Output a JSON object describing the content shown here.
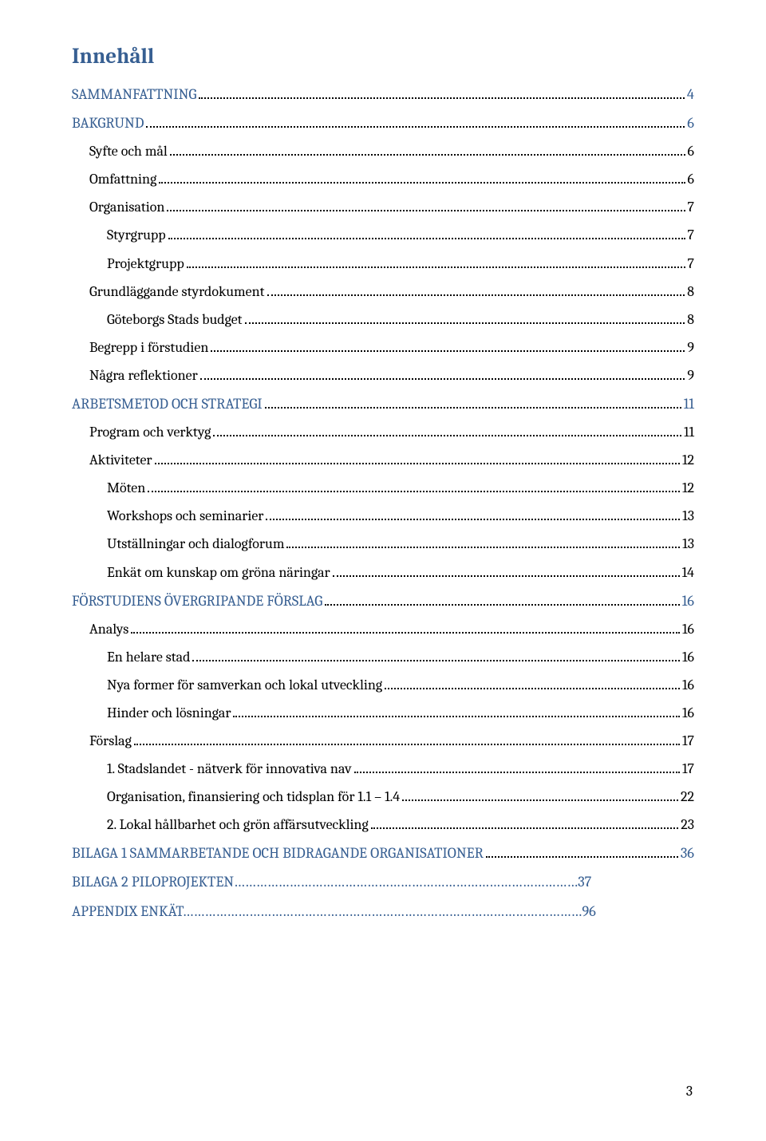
{
  "title": "Innehåll",
  "title_color": "#375f92",
  "colors": {
    "h1": "#375f92",
    "body": "#000000",
    "background": "#ffffff"
  },
  "page_number": "3",
  "entries": [
    {
      "level": "h1",
      "label": "SAMMANFATTNING",
      "page": "4"
    },
    {
      "level": "h1",
      "label": "BAKGRUND",
      "page": "6"
    },
    {
      "level": "h2",
      "label": "Syfte och mål",
      "page": "6"
    },
    {
      "level": "h2",
      "label": "Omfattning",
      "page": "6"
    },
    {
      "level": "h2",
      "label": "Organisation",
      "page": "7"
    },
    {
      "level": "h3",
      "label": "Styrgrupp",
      "page": "7"
    },
    {
      "level": "h3",
      "label": "Projektgrupp",
      "page": "7"
    },
    {
      "level": "h2",
      "label": "Grundläggande styrdokument",
      "page": "8"
    },
    {
      "level": "h3",
      "label": "Göteborgs Stads budget",
      "page": "8"
    },
    {
      "level": "h2",
      "label": "Begrepp i förstudien",
      "page": "9"
    },
    {
      "level": "h2",
      "label": "Några reflektioner",
      "page": "9"
    },
    {
      "level": "h1",
      "label": "ARBETSMETOD OCH STRATEGI",
      "page": "11"
    },
    {
      "level": "h2",
      "label": "Program och verktyg",
      "page": "11"
    },
    {
      "level": "h2",
      "label": "Aktiviteter",
      "page": "12"
    },
    {
      "level": "h3",
      "label": "Möten",
      "page": "12"
    },
    {
      "level": "h3",
      "label": "Workshops och seminarier",
      "page": "13"
    },
    {
      "level": "h3",
      "label": "Utställningar och dialogforum",
      "page": "13"
    },
    {
      "level": "h3",
      "label": "Enkät om kunskap om gröna näringar",
      "page": "14"
    },
    {
      "level": "h1",
      "label": "FÖRSTUDIENS ÖVERGRIPANDE FÖRSLAG",
      "page": "16"
    },
    {
      "level": "h2",
      "label": "Analys",
      "page": "16"
    },
    {
      "level": "h3",
      "label": "En helare stad",
      "page": "16"
    },
    {
      "level": "h3",
      "label": "Nya former för samverkan och lokal utveckling",
      "page": "16"
    },
    {
      "level": "h3",
      "label": "Hinder och lösningar",
      "page": "16"
    },
    {
      "level": "h2",
      "label": "Förslag",
      "page": "17"
    },
    {
      "level": "h3",
      "label": "1. Stadslandet - nätverk för innovativa nav",
      "page": "17"
    },
    {
      "level": "h3",
      "label": "Organisation, finansiering och tidsplan för 1.1 – 1.4",
      "page": "22"
    },
    {
      "level": "h3",
      "label": "2. Lokal hållbarhet och grön affärsutveckling",
      "page": "23"
    },
    {
      "level": "h1",
      "label": "BILAGA 1 SAMMARBETANDE OCH BIDRAGANDE ORGANISATIONER",
      "page": "36"
    },
    {
      "level": "h1",
      "label": "BILAGA 2 PILOPROJEKTEN…………………………………………………………………………………",
      "page": "  37",
      "nodots": true
    },
    {
      "level": "h1",
      "label": "APPENDIX  ENKÄT………………………………………………………………………………………………",
      "page": " 96",
      "nodots": true
    }
  ]
}
